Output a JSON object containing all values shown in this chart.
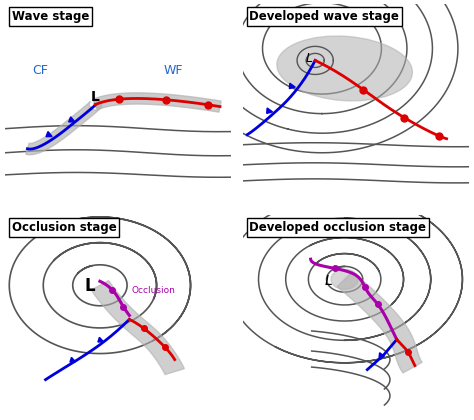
{
  "titles": [
    "Wave stage",
    "Developed wave stage",
    "Occlusion stage",
    "Developed occlusion stage"
  ],
  "bg_color": "#ffffff",
  "gray_fill": "#b0b0b0",
  "cold_front_color": "#0000dd",
  "warm_front_color": "#dd0000",
  "occlusion_color": "#aa00aa",
  "line_color": "#555555",
  "label_CF_color": "#2266cc",
  "label_WF_color": "#2266cc"
}
